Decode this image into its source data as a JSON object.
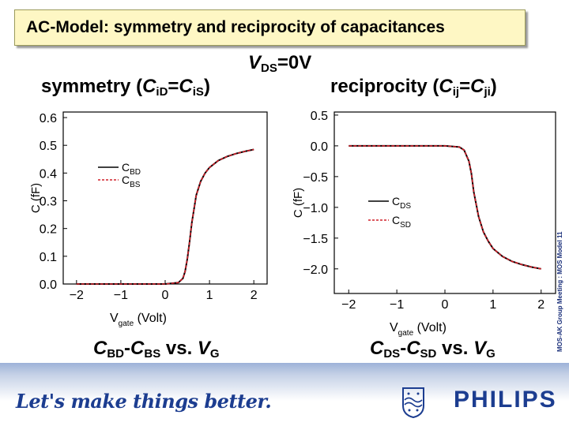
{
  "title": "AC-Model: symmetry and reciprocity of capacitances",
  "condition": {
    "var": "V",
    "sub": "DS",
    "rest": "=0V"
  },
  "symmetry_heading": {
    "word": "symmetry (",
    "c1": "C",
    "s1": "iD",
    "eq": "=",
    "c2": "C",
    "s2": "iS",
    "close": ")"
  },
  "reciprocity_heading": {
    "word": "reciprocity (",
    "c1": "C",
    "s1": "ij",
    "eq": "=",
    "c2": "C",
    "s2": "ji",
    "close": ")"
  },
  "caption_left": {
    "a": "C",
    "as": "BD",
    "dash": "-",
    "b": "C",
    "bs": "BS",
    "vs": " vs. ",
    "v": "V",
    "vsub": "G"
  },
  "caption_right": {
    "a": "C",
    "as": "DS",
    "dash": "-",
    "b": "C",
    "bs": "SD",
    "vs": " vs. ",
    "v": "V",
    "vsub": "G"
  },
  "side_note": "MOS-AK Group Meeting : MOS Model 11",
  "tagline": "Let's make things better.",
  "brand": "PHILIPS",
  "colors": {
    "title_bg": "#fef7c4",
    "series_solid": "#000000",
    "series_dashed": "#d0202a",
    "brand": "#1c3d90"
  },
  "chart_data": [
    {
      "type": "line",
      "xlabel": {
        "main": "V",
        "sub": "gate",
        "unit": "(Volt)"
      },
      "ylabel": "C (fF)",
      "xlim": [
        -2.3,
        2.3
      ],
      "ylim": [
        0.0,
        0.62
      ],
      "xticks": [
        -2,
        -1,
        0,
        1,
        2
      ],
      "xtick_labels": [
        "−2",
        "−1",
        "0",
        "1",
        "2"
      ],
      "yticks": [
        0.0,
        0.1,
        0.2,
        0.3,
        0.4,
        0.5,
        0.6
      ],
      "ytick_labels": [
        "0.0",
        "0.1",
        "0.2",
        "0.3",
        "0.4",
        "0.5",
        "0.6"
      ],
      "legend_position": "left",
      "series": [
        {
          "main": "C",
          "sub": "BD",
          "style": "solid",
          "x": [
            -2.0,
            -1.0,
            0.0,
            0.3,
            0.4,
            0.45,
            0.5,
            0.55,
            0.6,
            0.7,
            0.8,
            0.9,
            1.0,
            1.2,
            1.4,
            1.6,
            1.8,
            2.0
          ],
          "y": [
            0.0,
            0.0,
            0.0,
            0.005,
            0.02,
            0.045,
            0.09,
            0.15,
            0.22,
            0.32,
            0.37,
            0.4,
            0.42,
            0.445,
            0.46,
            0.47,
            0.478,
            0.485
          ]
        },
        {
          "main": "C",
          "sub": "BS",
          "style": "dashed",
          "x": [
            -2.0,
            -1.0,
            0.0,
            0.3,
            0.4,
            0.45,
            0.5,
            0.55,
            0.6,
            0.7,
            0.8,
            0.9,
            1.0,
            1.2,
            1.4,
            1.6,
            1.8,
            2.0
          ],
          "y": [
            0.0,
            0.0,
            0.0,
            0.005,
            0.02,
            0.045,
            0.09,
            0.15,
            0.22,
            0.32,
            0.37,
            0.4,
            0.42,
            0.445,
            0.46,
            0.47,
            0.478,
            0.485
          ]
        }
      ]
    },
    {
      "type": "line",
      "xlabel": {
        "main": "V",
        "sub": "gate",
        "unit": "(Volt)"
      },
      "ylabel": "C (fF)",
      "xlim": [
        -2.3,
        2.3
      ],
      "ylim": [
        -2.4,
        0.55
      ],
      "xticks": [
        -2,
        -1,
        0,
        1,
        2
      ],
      "xtick_labels": [
        "−2",
        "−1",
        "0",
        "1",
        "2"
      ],
      "yticks": [
        0.5,
        0.0,
        -0.5,
        -1.0,
        -1.5,
        -2.0
      ],
      "ytick_labels": [
        "0.5",
        "0.0",
        "−0.5",
        "−1.0",
        "−1.5",
        "−2.0"
      ],
      "legend_position": "left",
      "series": [
        {
          "main": "C",
          "sub": "DS",
          "style": "solid",
          "x": [
            -2.0,
            -1.0,
            0.0,
            0.3,
            0.4,
            0.5,
            0.55,
            0.6,
            0.7,
            0.8,
            0.9,
            1.0,
            1.2,
            1.4,
            1.6,
            1.8,
            2.0
          ],
          "y": [
            0.0,
            0.0,
            0.0,
            -0.02,
            -0.07,
            -0.25,
            -0.45,
            -0.75,
            -1.15,
            -1.4,
            -1.55,
            -1.67,
            -1.8,
            -1.88,
            -1.93,
            -1.97,
            -2.0
          ]
        },
        {
          "main": "C",
          "sub": "SD",
          "style": "dashed",
          "x": [
            -2.0,
            -1.0,
            0.0,
            0.3,
            0.4,
            0.5,
            0.55,
            0.6,
            0.7,
            0.8,
            0.9,
            1.0,
            1.2,
            1.4,
            1.6,
            1.8,
            2.0
          ],
          "y": [
            0.0,
            0.0,
            0.0,
            -0.02,
            -0.07,
            -0.25,
            -0.45,
            -0.75,
            -1.15,
            -1.4,
            -1.55,
            -1.67,
            -1.8,
            -1.88,
            -1.93,
            -1.97,
            -2.0
          ]
        }
      ]
    }
  ]
}
